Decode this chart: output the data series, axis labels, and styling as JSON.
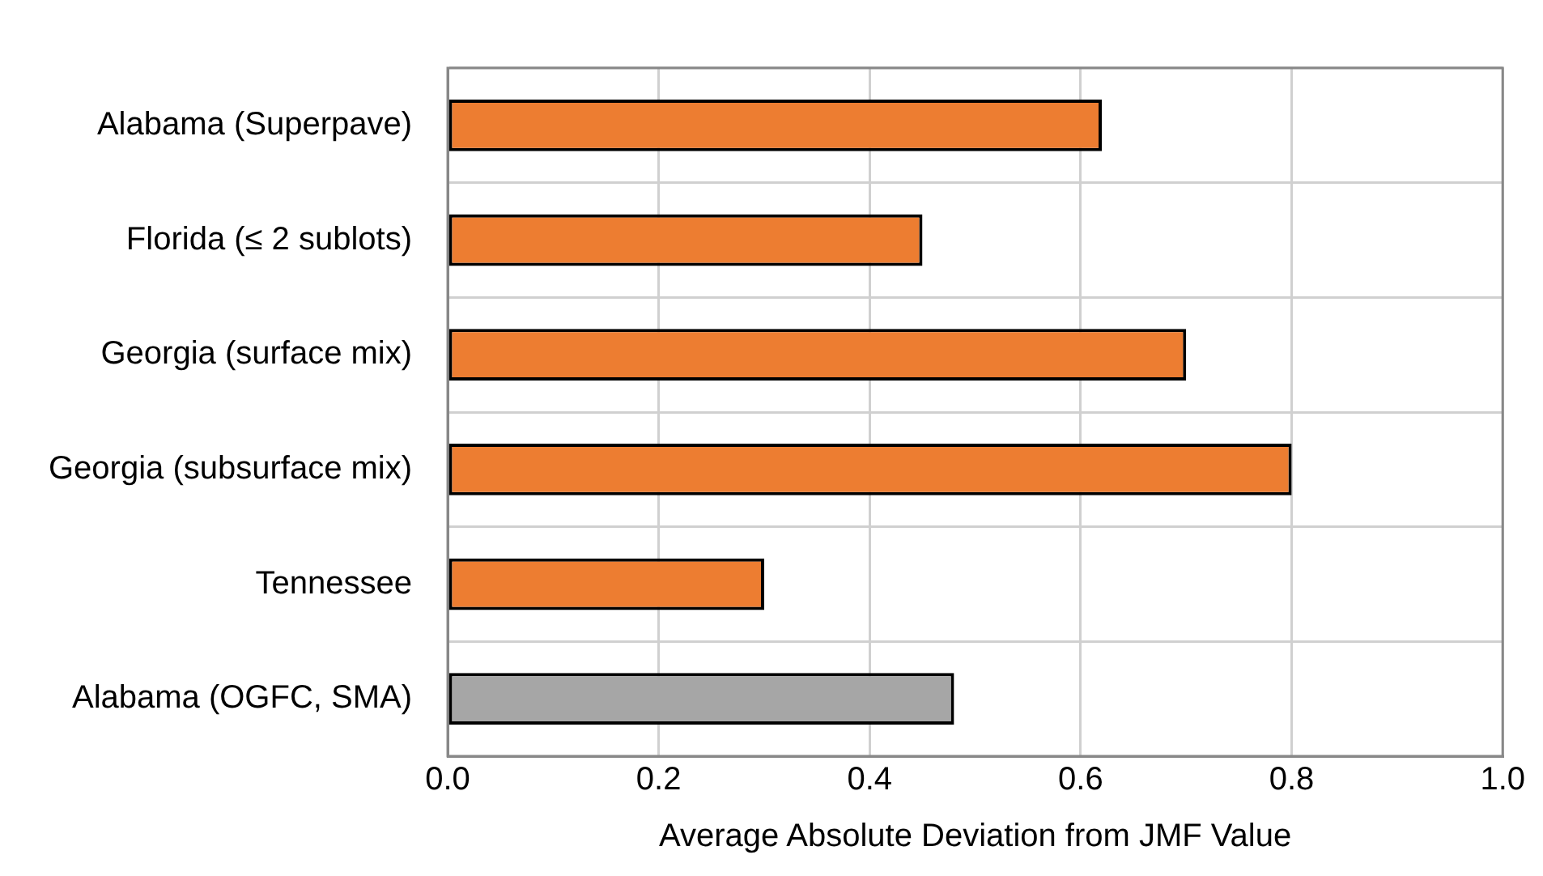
{
  "chart_data": {
    "type": "bar",
    "orientation": "horizontal",
    "xlabel": "Average Absolute Deviation from JMF Value",
    "categories": [
      "Alabama (Superpave)",
      "Florida (≤ 2 sublots)",
      "Georgia (surface mix)",
      "Georgia (subsurface mix)",
      "Tennessee",
      "Alabama (OGFC, SMA)"
    ],
    "values": [
      0.62,
      0.45,
      0.7,
      0.8,
      0.3,
      0.48
    ],
    "colors": [
      "#ed7d31",
      "#ed7d31",
      "#ed7d31",
      "#ed7d31",
      "#ed7d31",
      "#a6a6a6"
    ],
    "xlim": [
      0,
      1
    ],
    "xticks": [
      {
        "value": 0,
        "label": "0.0"
      },
      {
        "value": 0.2,
        "label": "0.2"
      },
      {
        "value": 0.4,
        "label": "0.4"
      },
      {
        "value": 0.6,
        "label": "0.6"
      },
      {
        "value": 0.8,
        "label": "0.8"
      },
      {
        "value": 1,
        "label": "1.0"
      }
    ],
    "grid": true,
    "legend": false
  }
}
